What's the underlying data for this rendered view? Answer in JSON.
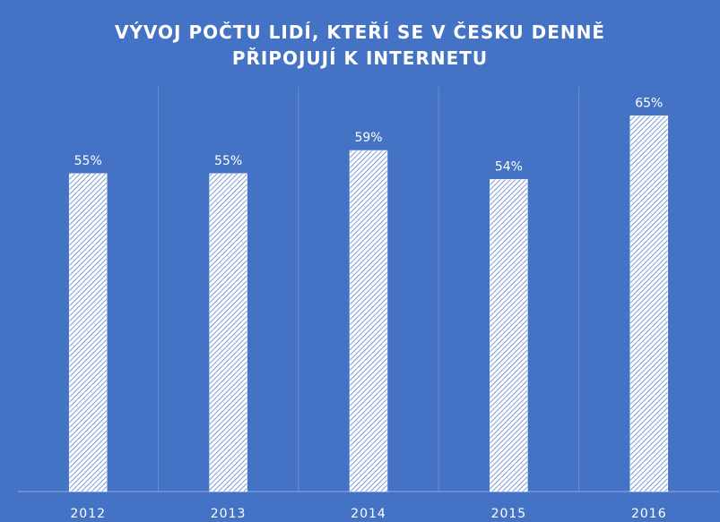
{
  "chart_data": {
    "type": "bar",
    "title": "VÝVOJ POČTU LIDÍ, KTEŘÍ SE V ČESKU DENNĚ PŘIPOJUJÍ K INTERNETU",
    "categories": [
      "2012",
      "2013",
      "2014",
      "2015",
      "2016"
    ],
    "values": [
      55,
      55,
      59,
      54,
      65
    ],
    "value_labels": [
      "55%",
      "55%",
      "59%",
      "54%",
      "65%"
    ],
    "color": "#ffffff",
    "background": "#4472c4",
    "ylim": [
      0,
      70
    ],
    "grid": true
  }
}
